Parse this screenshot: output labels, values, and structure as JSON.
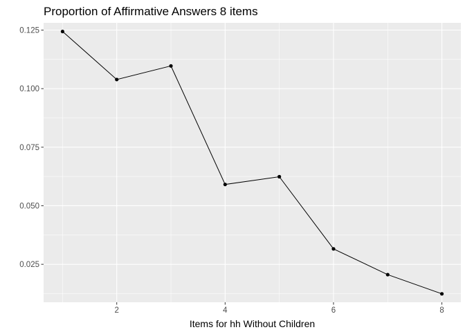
{
  "chart_data": {
    "type": "line",
    "title": "Proportion of Affirmative Answers 8 items",
    "xlabel": "Items for hh Without Children",
    "ylabel": "",
    "x": [
      1,
      2,
      3,
      4,
      5,
      6,
      7,
      8
    ],
    "series": [
      {
        "values": [
          0.1244,
          0.1039,
          0.1097,
          0.0591,
          0.0624,
          0.0316,
          0.0206,
          0.0124
        ]
      }
    ],
    "xlim": [
      0.65,
      8.35
    ],
    "ylim": [
      0.0088,
      0.1281
    ],
    "xticks": [
      2,
      4,
      6,
      8
    ],
    "xtick_labels": [
      "2",
      "4",
      "6",
      "8"
    ],
    "yticks": [
      0.025,
      0.05,
      0.075,
      0.1,
      0.125
    ],
    "ytick_labels": [
      "0.025",
      "0.050",
      "0.075",
      "0.100",
      "0.125"
    ],
    "grid": true,
    "legend": "none",
    "colors": {
      "panel_background": "#ebebeb",
      "grid": "#ffffff",
      "line": "#000000",
      "point": "#000000"
    }
  }
}
